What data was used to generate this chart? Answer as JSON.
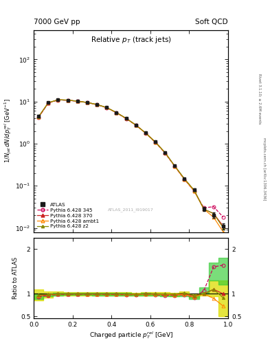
{
  "header_left": "7000 GeV pp",
  "header_right": "Soft QCD",
  "right_label_top": "Rivet 3.1.10; ≥ 2.6M events",
  "right_label_bot": "mcplots.cern.ch [arXiv:1306.3436]",
  "watermark": "ATLAS_2011_I919017",
  "xlabel": "Charged particle $p_T^{rel}$ [GeV]",
  "ylabel_main": "$1/N_{jet}\\,dN/dp_T^{rel}$ [GeV$^{-1}$]",
  "ylabel_ratio": "Ratio to ATLAS",
  "title_inside": "Relative $p_T$ (track jets)",
  "ylim_main": [
    0.008,
    500
  ],
  "ylim_ratio": [
    0.45,
    2.25
  ],
  "xlim": [
    0.0,
    1.0
  ],
  "x_data": [
    0.025,
    0.075,
    0.125,
    0.175,
    0.225,
    0.275,
    0.325,
    0.375,
    0.425,
    0.475,
    0.525,
    0.575,
    0.625,
    0.675,
    0.725,
    0.775,
    0.825,
    0.875,
    0.925,
    0.975
  ],
  "y_atlas": [
    4.5,
    9.5,
    11.0,
    10.8,
    10.2,
    9.5,
    8.5,
    7.2,
    5.5,
    4.0,
    2.8,
    1.8,
    1.1,
    0.62,
    0.3,
    0.145,
    0.082,
    0.028,
    0.02,
    0.011
  ],
  "yerr_atlas": [
    0.25,
    0.35,
    0.35,
    0.35,
    0.28,
    0.28,
    0.25,
    0.22,
    0.18,
    0.14,
    0.09,
    0.07,
    0.045,
    0.027,
    0.013,
    0.008,
    0.005,
    0.003,
    0.003,
    0.002
  ],
  "y_345": [
    4.2,
    9.2,
    10.85,
    10.72,
    10.12,
    9.42,
    8.42,
    7.12,
    5.42,
    3.92,
    2.75,
    1.78,
    1.08,
    0.6,
    0.29,
    0.142,
    0.075,
    0.03,
    0.032,
    0.018
  ],
  "y_370": [
    4.3,
    9.3,
    10.98,
    10.78,
    10.18,
    9.48,
    8.48,
    7.18,
    5.48,
    3.98,
    2.78,
    1.8,
    1.1,
    0.615,
    0.295,
    0.145,
    0.078,
    0.028,
    0.022,
    0.011
  ],
  "y_ambt1": [
    4.35,
    9.35,
    11.0,
    10.8,
    10.2,
    9.48,
    8.48,
    7.18,
    5.48,
    3.98,
    2.77,
    1.79,
    1.09,
    0.612,
    0.293,
    0.143,
    0.076,
    0.028,
    0.018,
    0.008
  ],
  "y_z2": [
    4.4,
    9.4,
    11.0,
    10.8,
    10.2,
    9.5,
    8.5,
    7.2,
    5.5,
    4.0,
    2.78,
    1.8,
    1.1,
    0.62,
    0.298,
    0.148,
    0.079,
    0.028,
    0.022,
    0.01
  ],
  "ratio_345": [
    0.933,
    0.968,
    0.986,
    0.993,
    0.993,
    0.992,
    0.991,
    0.989,
    0.985,
    0.98,
    0.982,
    0.989,
    0.982,
    0.968,
    0.967,
    0.979,
    0.915,
    1.071,
    1.6,
    1.64
  ],
  "ratio_370": [
    0.956,
    0.979,
    0.998,
    0.998,
    0.998,
    0.998,
    0.998,
    0.997,
    0.996,
    0.995,
    0.993,
    1.0,
    1.0,
    0.992,
    0.983,
    1.0,
    0.951,
    1.0,
    1.1,
    1.0
  ],
  "ratio_ambt1": [
    0.967,
    0.984,
    1.0,
    1.0,
    1.0,
    0.998,
    0.998,
    0.997,
    0.996,
    0.995,
    0.989,
    0.994,
    0.991,
    0.987,
    0.977,
    0.986,
    0.927,
    1.0,
    0.9,
    0.727
  ],
  "ratio_z2": [
    0.978,
    0.989,
    1.0,
    1.0,
    1.0,
    1.0,
    1.0,
    1.0,
    1.0,
    1.0,
    0.993,
    1.0,
    1.0,
    1.0,
    0.993,
    1.021,
    0.963,
    1.0,
    1.1,
    0.909
  ],
  "band_yellow_lo": [
    0.86,
    0.92,
    0.955,
    0.965,
    0.965,
    0.965,
    0.965,
    0.963,
    0.962,
    0.96,
    0.955,
    0.962,
    0.96,
    0.958,
    0.95,
    0.97,
    0.91,
    0.96,
    0.95,
    0.5
  ],
  "band_yellow_hi": [
    1.1,
    1.06,
    1.045,
    1.035,
    1.035,
    1.035,
    1.035,
    1.035,
    1.033,
    1.032,
    1.025,
    1.033,
    1.033,
    1.033,
    1.027,
    1.058,
    1.0,
    1.04,
    1.3,
    1.3
  ],
  "band_green_lo": [
    0.89,
    0.94,
    0.963,
    0.97,
    0.97,
    0.97,
    0.968,
    0.968,
    0.965,
    0.961,
    0.957,
    0.963,
    0.957,
    0.942,
    0.94,
    0.952,
    0.882,
    1.0,
    1.3,
    1.2
  ],
  "band_green_hi": [
    1.0,
    1.0,
    1.02,
    1.022,
    1.02,
    1.02,
    1.02,
    1.018,
    1.017,
    1.015,
    1.01,
    1.018,
    1.012,
    0.998,
    0.998,
    1.01,
    0.955,
    1.14,
    1.7,
    1.8
  ],
  "color_atlas": "#1a1a1a",
  "color_345": "#cc0055",
  "color_370": "#cc2222",
  "color_ambt1": "#ff8800",
  "color_z2": "#888800",
  "color_yellow": "#dddd00",
  "color_green": "#33cc33"
}
